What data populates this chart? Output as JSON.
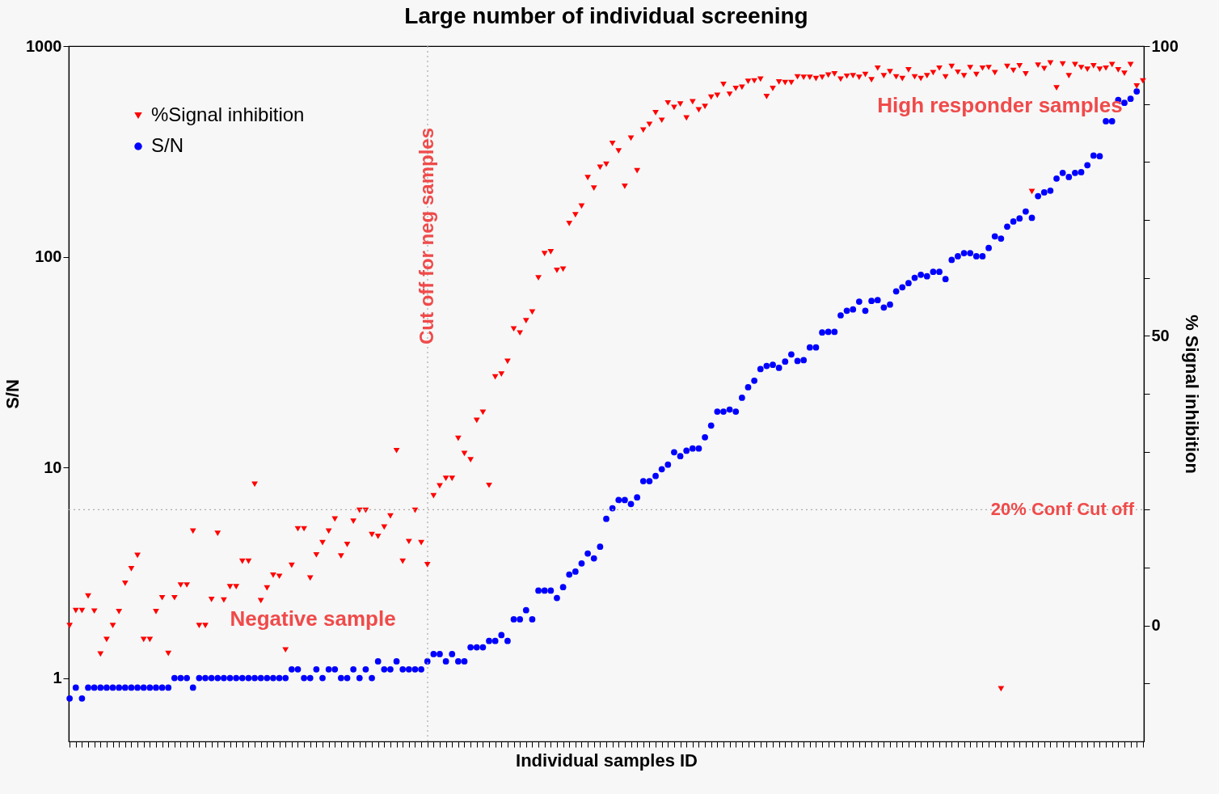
{
  "chart_data": {
    "type": "scatter",
    "title": "Large number of individual screening",
    "xlabel": "Individual samples ID",
    "ylabel": "S/N",
    "y2label": "% Signal inhibition",
    "categories": [
      null,
      null,
      null,
      null,
      null,
      null,
      null,
      null,
      null,
      null,
      null,
      null,
      null,
      null,
      null,
      null,
      null,
      null,
      null,
      null,
      null,
      null,
      null,
      null,
      null,
      null,
      null,
      null,
      null,
      null,
      null,
      null,
      null,
      null,
      null,
      null,
      null,
      null,
      null,
      null,
      null,
      null,
      null,
      null,
      null,
      null,
      null,
      null,
      null,
      null,
      null,
      null,
      null,
      null,
      null,
      null,
      null,
      null,
      null,
      null,
      null,
      null,
      null,
      null,
      null,
      null,
      null,
      null,
      null,
      null,
      null,
      null,
      null,
      null,
      null,
      null,
      null,
      null,
      null,
      null,
      null,
      null,
      null,
      null,
      null,
      null,
      null,
      null,
      null,
      null,
      null,
      null,
      null,
      null,
      null,
      null,
      null,
      null,
      null,
      null,
      null,
      null,
      null,
      null,
      null,
      null,
      null,
      null,
      null,
      null,
      null,
      null,
      null,
      null,
      null,
      null,
      null,
      null,
      null,
      null,
      null,
      null,
      null,
      null,
      null,
      null,
      null,
      null,
      null,
      null,
      null,
      null,
      null,
      null,
      null,
      null,
      null,
      null,
      null,
      null,
      null,
      null,
      null,
      null,
      null,
      null,
      null,
      null,
      null,
      null,
      null,
      null,
      null,
      null,
      null,
      null,
      null,
      null,
      null,
      null,
      null,
      null,
      null,
      null,
      null,
      null,
      null,
      null,
      null,
      null,
      null,
      null,
      null,
      null,
      null
    ],
    "series": [
      {
        "name": "%Signal inhibition",
        "marker": "triangle",
        "axis": "y2",
        "color": "#ff0000",
        "values": [
          0,
          2.6,
          2.6,
          5.1,
          2.5,
          -4.9,
          -2.4,
          0,
          2.4,
          7.3,
          9.8,
          12.1,
          -2.4,
          -2.4,
          2.4,
          4.8,
          -4.8,
          4.8,
          7.0,
          7.0,
          16.3,
          0,
          0,
          4.5,
          15.9,
          4.4,
          6.7,
          6.7,
          11.1,
          11.1,
          24.4,
          4.3,
          6.5,
          8.7,
          8.5,
          -4.2,
          10.4,
          16.7,
          16.7,
          8.2,
          12.2,
          14.3,
          16.3,
          18.4,
          12.0,
          14.0,
          18.0,
          19.9,
          19.9,
          15.7,
          15.4,
          17.0,
          18.9,
          30.2,
          11.1,
          14.5,
          19.9,
          14.3,
          10.5,
          22.4,
          24.1,
          25.4,
          25.4,
          32.3,
          29.7,
          28.6,
          35.4,
          36.8,
          24.2,
          42.9,
          43.4,
          45.6,
          51.2,
          50.5,
          52.6,
          54.1,
          60.0,
          64.2,
          64.5,
          61.3,
          61.5,
          69.4,
          70.9,
          72.4,
          77.3,
          75.5,
          79.1,
          79.6,
          83.2,
          81.9,
          75.8,
          84.1,
          78.5,
          85.5,
          86.5,
          88.5,
          87.2,
          90.2,
          89.4,
          90.0,
          87.6,
          90.4,
          89.0,
          89.6,
          91.2,
          91.5,
          93.4,
          91.7,
          92.7,
          92.9,
          93.9,
          94.0,
          94.3,
          91.3,
          92.7,
          93.8,
          93.7,
          93.7,
          94.7,
          94.6,
          94.6,
          94.4,
          94.6,
          95.0,
          95.2,
          94.3,
          94.8,
          94.9,
          94.6,
          95.1,
          94.2,
          96.2,
          94.9,
          95.6,
          94.7,
          94.4,
          95.9,
          94.7,
          94.4,
          94.9,
          95.4,
          96.2,
          94.7,
          96.5,
          95.5,
          94.9,
          96.3,
          95.1,
          96.2,
          96.3,
          95.4,
          -10.9,
          96.5,
          95.8,
          96.6,
          95.2,
          74.9,
          96.7,
          96.1,
          97.1,
          92.8,
          96.9,
          94.9,
          96.8,
          96.3,
          96.0,
          96.6,
          96.0,
          96.2,
          96.8,
          95.9,
          95.3,
          96.8,
          93.1,
          94.0
        ]
      },
      {
        "name": "S/N",
        "marker": "circle",
        "color": "#0000ff",
        "values": [
          0.8,
          0.9,
          0.8,
          0.9,
          0.9,
          0.9,
          0.9,
          0.9,
          0.9,
          0.9,
          0.9,
          0.9,
          0.9,
          0.9,
          0.9,
          0.9,
          0.9,
          1.0,
          1.0,
          1.0,
          0.9,
          1.0,
          1.0,
          1.0,
          1.0,
          1.0,
          1.0,
          1.0,
          1.0,
          1.0,
          1.0,
          1.0,
          1.0,
          1.0,
          1.0,
          1.0,
          1.1,
          1.1,
          1.0,
          1.0,
          1.1,
          1.0,
          1.1,
          1.1,
          1.0,
          1.0,
          1.1,
          1.0,
          1.1,
          1.0,
          1.2,
          1.1,
          1.1,
          1.2,
          1.1,
          1.1,
          1.1,
          1.1,
          1.2,
          1.3,
          1.3,
          1.2,
          1.3,
          1.2,
          1.2,
          1.4,
          1.4,
          1.4,
          1.5,
          1.5,
          1.6,
          1.5,
          1.9,
          1.9,
          2.1,
          1.9,
          2.6,
          2.6,
          2.6,
          2.4,
          2.7,
          3.1,
          3.2,
          3.5,
          3.9,
          3.7,
          4.2,
          5.7,
          6.4,
          7.0,
          7.0,
          6.7,
          7.2,
          8.6,
          8.6,
          9.1,
          9.8,
          10.3,
          11.8,
          11.3,
          12.0,
          12.3,
          12.3,
          13.9,
          15.8,
          18.4,
          18.4,
          18.8,
          18.4,
          21.4,
          24,
          25.8,
          29.3,
          30.3,
          30.7,
          29.7,
          31.8,
          34.4,
          32,
          32.3,
          37.1,
          37.1,
          43.7,
          44,
          44,
          52.7,
          55.4,
          56.2,
          61.2,
          55.4,
          61.7,
          62.2,
          57.4,
          59.3,
          68.5,
          71.6,
          74.9,
          79.4,
          82.1,
          80.8,
          84.8,
          84.8,
          78.3,
          96.6,
          100.5,
          104,
          104,
          100.5,
          100.5,
          110,
          125,
          122,
          139,
          147,
          152,
          164,
          153,
          194,
          202,
          206,
          235,
          250,
          239,
          250,
          252,
          272,
          302,
          300,
          440,
          440,
          555,
          538,
          562,
          609,
          null
        ]
      }
    ],
    "log": "y",
    "ylim": [
      0.5,
      1000
    ],
    "yticks": [
      1,
      10,
      100,
      1000
    ],
    "y2lim": [
      -20,
      100
    ],
    "y2ticks": [
      {
        "value": -10,
        "label": null
      },
      0,
      {
        "value": 10,
        "label": null
      },
      {
        "value": 20,
        "label": null
      },
      {
        "value": 30,
        "label": null
      },
      {
        "value": 40,
        "label": null
      },
      50,
      {
        "value": 60,
        "label": null
      },
      {
        "value": 70,
        "label": null
      },
      {
        "value": 80,
        "label": null
      },
      {
        "value": 90,
        "label": null
      },
      100
    ],
    "ref_lines": [
      {
        "axis": "y2",
        "value": 20,
        "label": "20% Conf Cut off"
      }
    ],
    "annotations": [
      "Negative sample",
      "High responder samples",
      "Cut off for neg samples"
    ],
    "legend": "top left",
    "grid": false
  }
}
